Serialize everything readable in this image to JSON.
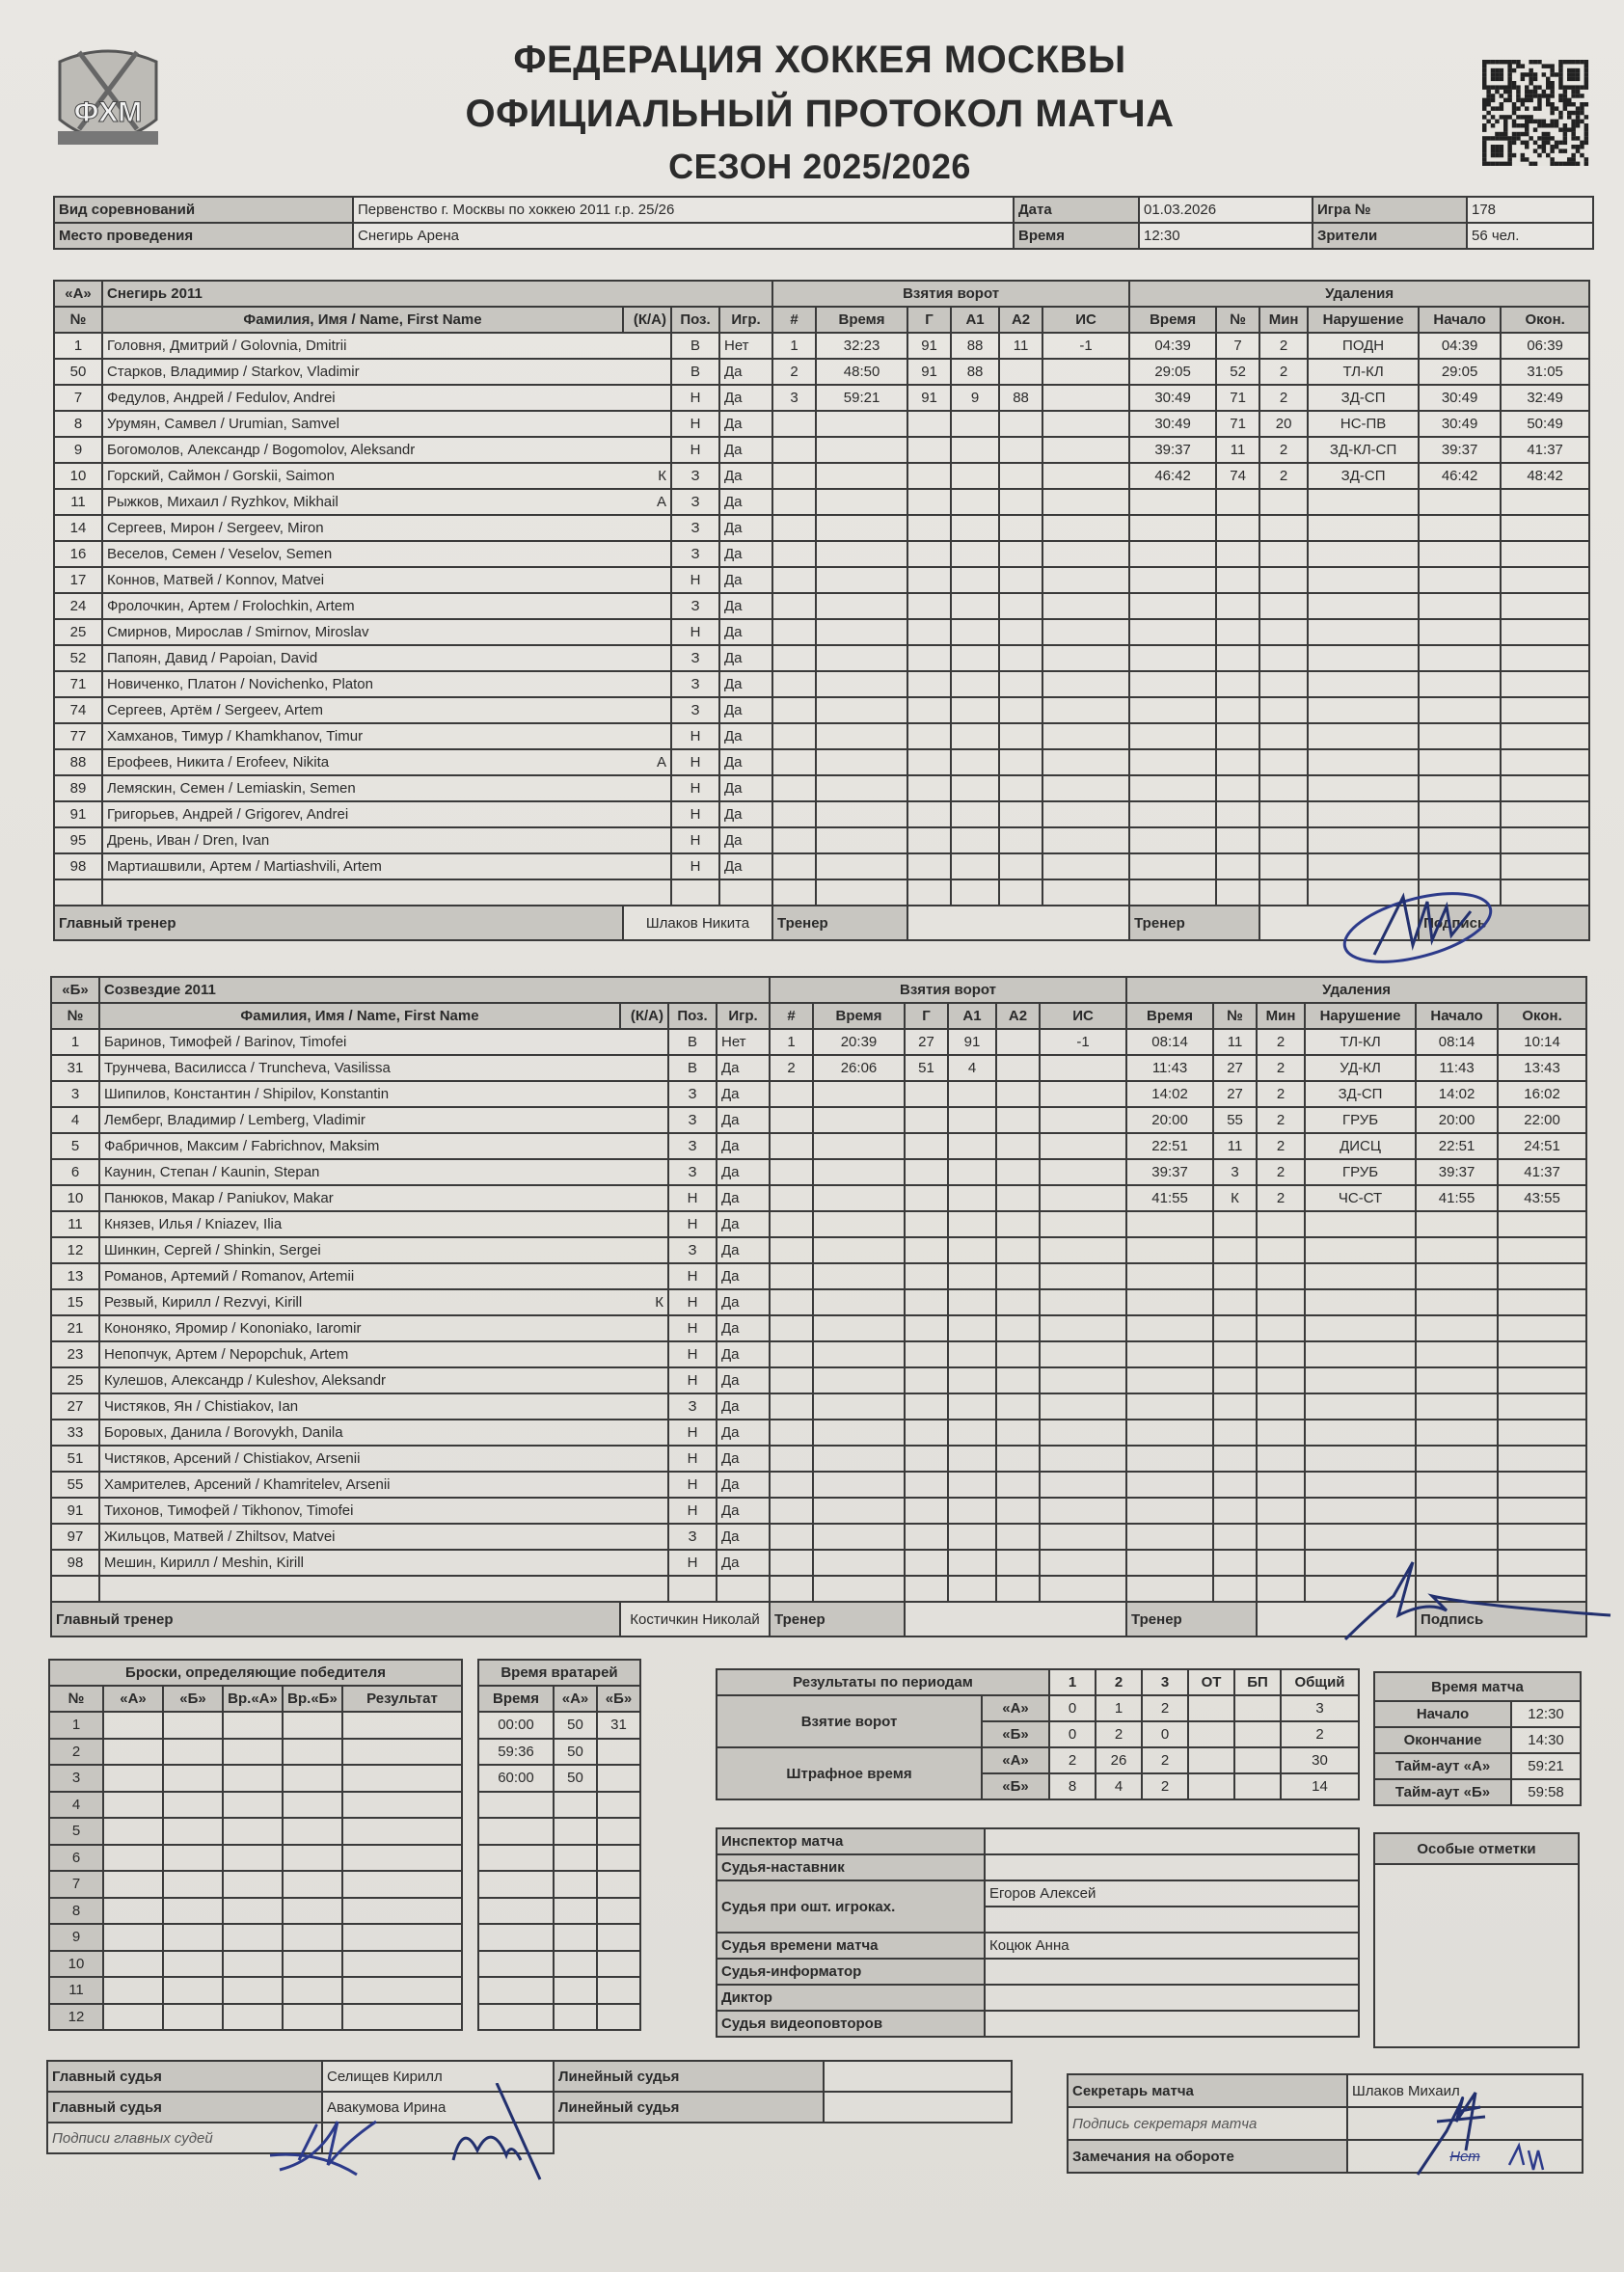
{
  "header": {
    "logo_text": "ФХМ",
    "title_line1": "ФЕДЕРАЦИЯ ХОККЕЯ МОСКВЫ",
    "title_line2": "ОФИЦИАЛЬНЫЙ ПРОТОКОЛ МАТЧА",
    "season": "СЕЗОН 2025/2026"
  },
  "info": {
    "competition_label": "Вид соревнований",
    "competition": "Первенство г. Москвы по хоккею 2011 г.р. 25/26",
    "venue_label": "Место проведения",
    "venue": "Снегирь Арена",
    "date_label": "Дата",
    "date": "01.03.2026",
    "time_label": "Время",
    "time": "12:30",
    "game_label": "Игра №",
    "game": "178",
    "spectators_label": "Зрители",
    "spectators": "56 чел."
  },
  "columns": {
    "no": "№",
    "name": "Фамилия, Имя / Name, First Name",
    "ka": "(К/А)",
    "pos": "Поз.",
    "played": "Игр.",
    "goals_title": "Взятия ворот",
    "g_n": "#",
    "g_time": "Время",
    "g_g": "Г",
    "g_a1": "А1",
    "g_a2": "А2",
    "g_is": "ИС",
    "pen_title": "Удаления",
    "p_time": "Время",
    "p_no": "№",
    "p_min": "Мин",
    "p_inf": "Нарушение",
    "p_start": "Начало",
    "p_end": "Окон."
  },
  "teams": [
    {
      "label": "«А»",
      "name": "Снегирь 2011",
      "players": [
        [
          "1",
          "Головня, Дмитрий / Golovnia, Dmitrii",
          "",
          "В",
          "Нет"
        ],
        [
          "50",
          "Старков, Владимир / Starkov, Vladimir",
          "",
          "В",
          "Да"
        ],
        [
          "7",
          "Федулов, Андрей / Fedulov, Andrei",
          "",
          "Н",
          "Да"
        ],
        [
          "8",
          "Урумян, Самвел / Urumian, Samvel",
          "",
          "Н",
          "Да"
        ],
        [
          "9",
          "Богомолов, Александр / Bogomolov, Aleksandr",
          "",
          "Н",
          "Да"
        ],
        [
          "10",
          "Горский, Саймон / Gorskii, Saimon",
          "К",
          "З",
          "Да"
        ],
        [
          "11",
          "Рыжков, Михаил / Ryzhkov, Mikhail",
          "А",
          "З",
          "Да"
        ],
        [
          "14",
          "Сергеев, Мирон / Sergeev, Miron",
          "",
          "З",
          "Да"
        ],
        [
          "16",
          "Веселов, Семен / Veselov, Semen",
          "",
          "З",
          "Да"
        ],
        [
          "17",
          "Коннов, Матвей / Konnov, Matvei",
          "",
          "Н",
          "Да"
        ],
        [
          "24",
          "Фролочкин, Артем / Frolochkin, Artem",
          "",
          "З",
          "Да"
        ],
        [
          "25",
          "Смирнов, Мирослав / Smirnov, Miroslav",
          "",
          "Н",
          "Да"
        ],
        [
          "52",
          "Папоян, Давид / Papoian, David",
          "",
          "З",
          "Да"
        ],
        [
          "71",
          "Новиченко, Платон / Novichenko, Platon",
          "",
          "З",
          "Да"
        ],
        [
          "74",
          "Сергеев, Артём / Sergeev, Artem",
          "",
          "З",
          "Да"
        ],
        [
          "77",
          "Хамханов, Тимур / Khamkhanov, Timur",
          "",
          "Н",
          "Да"
        ],
        [
          "88",
          "Ерофеев, Никита / Erofeev, Nikita",
          "А",
          "Н",
          "Да"
        ],
        [
          "89",
          "Лемяскин, Семен / Lemiaskin, Semen",
          "",
          "Н",
          "Да"
        ],
        [
          "91",
          "Григорьев, Андрей / Grigorev, Andrei",
          "",
          "Н",
          "Да"
        ],
        [
          "95",
          "Дрень, Иван / Dren, Ivan",
          "",
          "Н",
          "Да"
        ],
        [
          "98",
          "Мартиашвили, Артем / Martiashvili, Artem",
          "",
          "Н",
          "Да"
        ]
      ],
      "goals": [
        [
          "1",
          "32:23",
          "91",
          "88",
          "11",
          "-1"
        ],
        [
          "2",
          "48:50",
          "91",
          "88",
          "",
          ""
        ],
        [
          "3",
          "59:21",
          "91",
          "9",
          "88",
          ""
        ]
      ],
      "penalties": [
        [
          "04:39",
          "7",
          "2",
          "ПОДН",
          "04:39",
          "06:39"
        ],
        [
          "29:05",
          "52",
          "2",
          "ТЛ-КЛ",
          "29:05",
          "31:05"
        ],
        [
          "30:49",
          "71",
          "2",
          "ЗД-СП",
          "30:49",
          "32:49"
        ],
        [
          "30:49",
          "71",
          "20",
          "НС-ПВ",
          "30:49",
          "50:49"
        ],
        [
          "39:37",
          "11",
          "2",
          "ЗД-КЛ-СП",
          "39:37",
          "41:37"
        ],
        [
          "46:42",
          "74",
          "2",
          "ЗД-СП",
          "46:42",
          "48:42"
        ]
      ],
      "head_coach_label": "Главный тренер",
      "head_coach": "Шлаков Никита",
      "coach_label": "Тренер",
      "coach2_label": "Тренер",
      "signature_label": "Подпись"
    },
    {
      "label": "«Б»",
      "name": "Созвездие 2011",
      "players": [
        [
          "1",
          "Баринов, Тимофей / Barinov, Timofei",
          "",
          "В",
          "Нет"
        ],
        [
          "31",
          "Трунчева, Василисса / Truncheva, Vasilissa",
          "",
          "В",
          "Да"
        ],
        [
          "3",
          "Шипилов, Константин / Shipilov, Konstantin",
          "",
          "З",
          "Да"
        ],
        [
          "4",
          "Лемберг, Владимир / Lemberg, Vladimir",
          "",
          "З",
          "Да"
        ],
        [
          "5",
          "Фабричнов, Максим / Fabrichnov, Maksim",
          "",
          "З",
          "Да"
        ],
        [
          "6",
          "Каунин, Степан / Kaunin, Stepan",
          "",
          "З",
          "Да"
        ],
        [
          "10",
          "Панюков, Макар / Paniukov, Makar",
          "",
          "Н",
          "Да"
        ],
        [
          "11",
          "Князев, Илья / Kniazev, Ilia",
          "",
          "Н",
          "Да"
        ],
        [
          "12",
          "Шинкин, Сергей / Shinkin, Sergei",
          "",
          "З",
          "Да"
        ],
        [
          "13",
          "Романов, Артемий / Romanov, Artemii",
          "",
          "Н",
          "Да"
        ],
        [
          "15",
          "Резвый, Кирилл / Rezvyi, Kirill",
          "К",
          "Н",
          "Да"
        ],
        [
          "21",
          "Кононяко, Яромир / Kononiako, Iaromir",
          "",
          "Н",
          "Да"
        ],
        [
          "23",
          "Непопчук, Артем / Nepopchuk, Artem",
          "",
          "Н",
          "Да"
        ],
        [
          "25",
          "Кулешов, Александр / Kuleshov, Aleksandr",
          "",
          "Н",
          "Да"
        ],
        [
          "27",
          "Чистяков, Ян / Chistiakov, Ian",
          "",
          "З",
          "Да"
        ],
        [
          "33",
          "Боровых, Данила / Borovykh, Danila",
          "",
          "Н",
          "Да"
        ],
        [
          "51",
          "Чистяков, Арсений / Chistiakov, Arsenii",
          "",
          "Н",
          "Да"
        ],
        [
          "55",
          "Хамрителев, Арсений / Khamritelev, Arsenii",
          "",
          "Н",
          "Да"
        ],
        [
          "91",
          "Тихонов, Тимофей / Tikhonov, Timofei",
          "",
          "Н",
          "Да"
        ],
        [
          "97",
          "Жильцов, Матвей / Zhiltsov, Matvei",
          "",
          "З",
          "Да"
        ],
        [
          "98",
          "Мешин, Кирилл / Meshin, Kirill",
          "",
          "Н",
          "Да"
        ]
      ],
      "goals": [
        [
          "1",
          "20:39",
          "27",
          "91",
          "",
          "-1"
        ],
        [
          "2",
          "26:06",
          "51",
          "4",
          "",
          ""
        ]
      ],
      "penalties": [
        [
          "08:14",
          "11",
          "2",
          "ТЛ-КЛ",
          "08:14",
          "10:14"
        ],
        [
          "11:43",
          "27",
          "2",
          "УД-КЛ",
          "11:43",
          "13:43"
        ],
        [
          "14:02",
          "27",
          "2",
          "ЗД-СП",
          "14:02",
          "16:02"
        ],
        [
          "20:00",
          "55",
          "2",
          "ГРУБ",
          "20:00",
          "22:00"
        ],
        [
          "22:51",
          "11",
          "2",
          "ДИСЦ",
          "22:51",
          "24:51"
        ],
        [
          "39:37",
          "3",
          "2",
          "ГРУБ",
          "39:37",
          "41:37"
        ],
        [
          "41:55",
          "К",
          "2",
          "ЧС-СТ",
          "41:55",
          "43:55"
        ]
      ],
      "head_coach_label": "Главный тренер",
      "head_coach": "Костичкин Николай",
      "coach_label": "Тренер",
      "coach2_label": "Тренер",
      "signature_label": "Подпись"
    }
  ],
  "shootout": {
    "title": "Броски, определяющие победителя",
    "headers": [
      "№",
      "«А»",
      "«Б»",
      "Вр.«А»",
      "Вр.«Б»",
      "Результат"
    ],
    "rows": [
      "1",
      "2",
      "3",
      "4",
      "5",
      "6",
      "7",
      "8",
      "9",
      "10",
      "11",
      "12"
    ]
  },
  "goalies": {
    "title": "Время вратарей",
    "headers": [
      "Время",
      "«А»",
      "«Б»"
    ],
    "rows": [
      [
        "00:00",
        "50",
        "31"
      ],
      [
        "59:36",
        "50",
        ""
      ],
      [
        "60:00",
        "50",
        ""
      ]
    ]
  },
  "periods": {
    "title": "Результаты по периодам",
    "headers": [
      "1",
      "2",
      "3",
      "ОТ",
      "БП",
      "Общий"
    ],
    "goals_label": "Взятие ворот",
    "penalty_label": "Штрафное время",
    "team_a": "«А»",
    "team_b": "«Б»",
    "goals_a": [
      "0",
      "1",
      "2",
      "",
      "",
      "3"
    ],
    "goals_b": [
      "0",
      "2",
      "0",
      "",
      "",
      "2"
    ],
    "pim_a": [
      "2",
      "26",
      "2",
      "",
      "",
      "30"
    ],
    "pim_b": [
      "8",
      "4",
      "2",
      "",
      "",
      "14"
    ]
  },
  "match_time": {
    "title": "Время матча",
    "rows": [
      [
        "Начало",
        "12:30"
      ],
      [
        "Окончание",
        "14:30"
      ],
      [
        "Тайм-аут «А»",
        "59:21"
      ],
      [
        "Тайм-аут «Б»",
        "59:58"
      ]
    ]
  },
  "officials": {
    "inspector": "Инспектор матча",
    "mentor": "Судья-наставник",
    "penalty_box": "Судья при ошт. игроках.",
    "penalty_box_1": "Егоров Алексей",
    "timekeeper": "Судья времени матча",
    "timekeeper_name": "Коцюк Анна",
    "informer": "Судья-информатор",
    "announcer": "Диктор",
    "video": "Судья видеоповторов"
  },
  "special": {
    "title": "Особые отметки"
  },
  "referees": {
    "ref_label": "Главный судья",
    "ref1": "Селищев Кирилл",
    "ref2": "Авакумова Ирина",
    "linesman_label": "Линейный судья",
    "signatures_label": "Подписи главных судей"
  },
  "secretary": {
    "label": "Секретарь матча",
    "name": "Шлаков Михаил",
    "signature_label": "Подпись секретаря матча",
    "remarks_label": "Замечания на обороте",
    "remarks_value": "Нет"
  },
  "colors": {
    "ink": "#2a2a2a",
    "header_fill": "#c8c6c1",
    "signature_ink": "#2c3a8a"
  }
}
